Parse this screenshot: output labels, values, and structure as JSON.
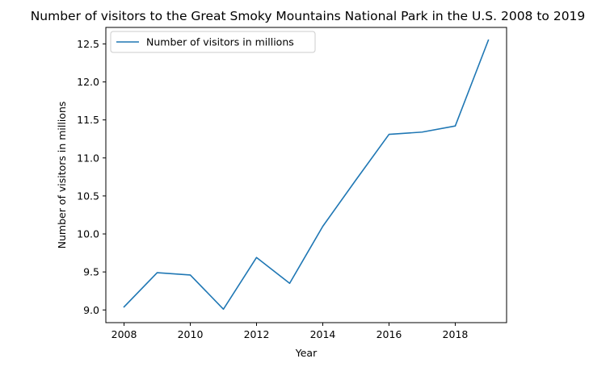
{
  "chart_data": {
    "type": "line",
    "title": "Number of visitors to the Great Smoky Mountains National Park in the U.S. 2008 to 2019",
    "xlabel": "Year",
    "ylabel": "Number of visitors in millions",
    "x": [
      2008,
      2009,
      2010,
      2011,
      2012,
      2013,
      2014,
      2015,
      2016,
      2017,
      2018,
      2019
    ],
    "series": [
      {
        "name": "Number of visitors in millions",
        "values": [
          9.04,
          9.49,
          9.46,
          9.01,
          9.69,
          9.35,
          10.1,
          10.71,
          11.31,
          11.34,
          11.42,
          12.55
        ],
        "color": "#1f77b4"
      }
    ],
    "xlim": [
      2007.45,
      2019.55
    ],
    "ylim": [
      8.833,
      12.717
    ],
    "xticks": [
      2008,
      2010,
      2012,
      2014,
      2016,
      2018
    ],
    "xtick_labels": [
      "2008",
      "2010",
      "2012",
      "2014",
      "2016",
      "2018"
    ],
    "yticks": [
      9.0,
      9.5,
      10.0,
      10.5,
      11.0,
      11.5,
      12.0,
      12.5
    ],
    "ytick_labels": [
      "9.0",
      "9.5",
      "10.0",
      "10.5",
      "11.0",
      "11.5",
      "12.0",
      "12.5"
    ],
    "grid": false,
    "legend_position": "upper-left"
  }
}
